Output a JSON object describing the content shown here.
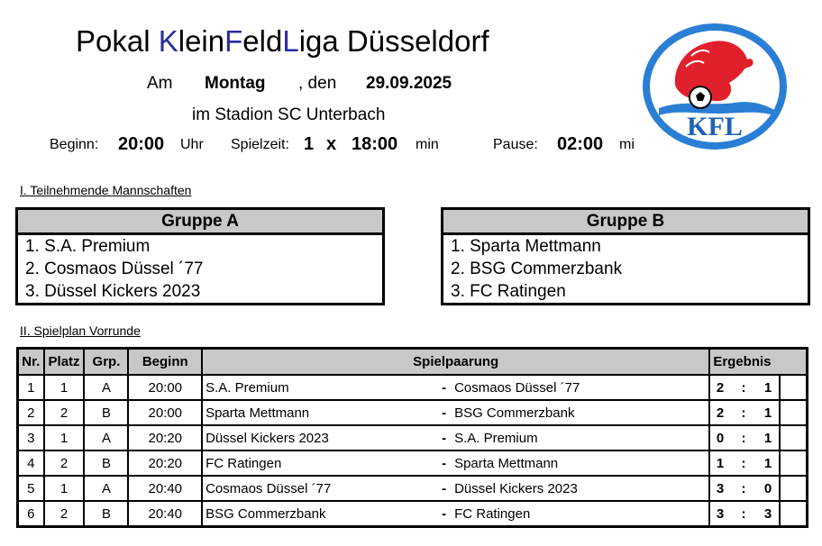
{
  "header": {
    "title_parts": [
      "Pokal ",
      "K",
      "lein",
      "F",
      "eld",
      "L",
      "iga Düsseldorf"
    ],
    "am_label": "Am",
    "day": "Montag",
    "den_label": ", den",
    "date": "29.09.2025",
    "venue": "im Stadion SC Unterbach",
    "beginn_label": "Beginn:",
    "beginn_time": "20:00",
    "uhr_label": "Uhr",
    "spielzeit_label": "Spielzeit:",
    "spielzeit_count": "1",
    "x_label": "x",
    "spielzeit_time": "18:00",
    "min_label": "min",
    "pause_label": "Pause:",
    "pause_time": "02:00",
    "mi_label": "mi"
  },
  "logo": {
    "text": "KFL",
    "icon": "lion-with-football",
    "colors": {
      "ring": "#2a7fd4",
      "lion": "#e0202a",
      "text": "#1f63b5"
    }
  },
  "section1": "I. Teilnehmende Mannschaften",
  "groups": [
    {
      "title": "Gruppe A",
      "teams": [
        "1.  S.A. Premium",
        "2.  Cosmaos Düssel ´77",
        "3.  Düssel Kickers 2023"
      ]
    },
    {
      "title": "Gruppe B",
      "teams": [
        "1.  Sparta Mettmann",
        "2.  BSG Commerzbank",
        "3.  FC Ratingen"
      ]
    }
  ],
  "section2": "II. Spielplan Vorrunde",
  "schedule": {
    "headers": {
      "nr": "Nr.",
      "platz": "Platz",
      "grp": "Grp.",
      "beginn": "Beginn",
      "paarung": "Spielpaarung",
      "ergebnis": "Ergebnis"
    },
    "rows": [
      {
        "nr": "1",
        "platz": "1",
        "grp": "A",
        "beginn": "20:00",
        "home": "S.A. Premium",
        "sep": "-",
        "away": "Cosmaos Düssel ´77",
        "h": "2",
        "colon": ":",
        "a": "1"
      },
      {
        "nr": "2",
        "platz": "2",
        "grp": "B",
        "beginn": "20:00",
        "home": "Sparta Mettmann",
        "sep": "-",
        "away": "BSG Commerzbank",
        "h": "2",
        "colon": ":",
        "a": "1"
      },
      {
        "nr": "3",
        "platz": "1",
        "grp": "A",
        "beginn": "20:20",
        "home": "Düssel Kickers 2023",
        "sep": "-",
        "away": "S.A. Premium",
        "h": "0",
        "colon": ":",
        "a": "1"
      },
      {
        "nr": "4",
        "platz": "2",
        "grp": "B",
        "beginn": "20:20",
        "home": "FC Ratingen",
        "sep": "-",
        "away": "Sparta Mettmann",
        "h": "1",
        "colon": ":",
        "a": "1"
      },
      {
        "nr": "5",
        "platz": "1",
        "grp": "A",
        "beginn": "20:40",
        "home": "Cosmaos Düssel ´77",
        "sep": "-",
        "away": "Düssel Kickers 2023",
        "h": "3",
        "colon": ":",
        "a": "0"
      },
      {
        "nr": "6",
        "platz": "2",
        "grp": "B",
        "beginn": "20:40",
        "home": "BSG Commerzbank",
        "sep": "-",
        "away": "FC Ratingen",
        "h": "3",
        "colon": ":",
        "a": "3"
      }
    ]
  }
}
